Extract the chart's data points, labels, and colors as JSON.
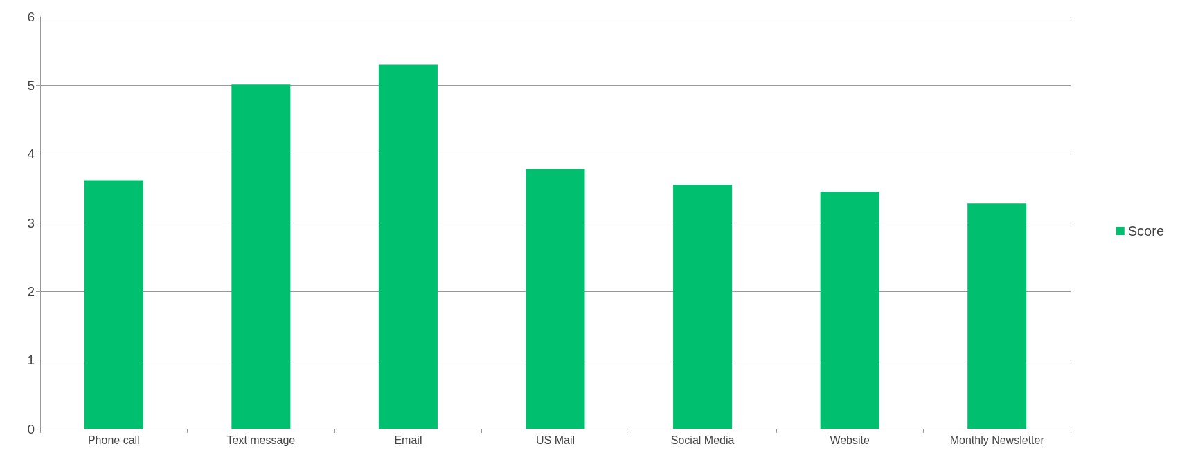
{
  "chart_data": {
    "type": "bar",
    "categories": [
      "Phone call",
      "Text message",
      "Email",
      "US Mail",
      "Social Media",
      "Website",
      "Monthly Newsletter"
    ],
    "series": [
      {
        "name": "Score",
        "color": "#00bf6f",
        "values": [
          3.62,
          5.01,
          5.3,
          3.78,
          3.55,
          3.45,
          3.28
        ]
      }
    ],
    "ylim": [
      0,
      6
    ],
    "yticks": [
      0,
      1,
      2,
      3,
      4,
      5,
      6
    ],
    "grid": "y",
    "legend": "right"
  }
}
